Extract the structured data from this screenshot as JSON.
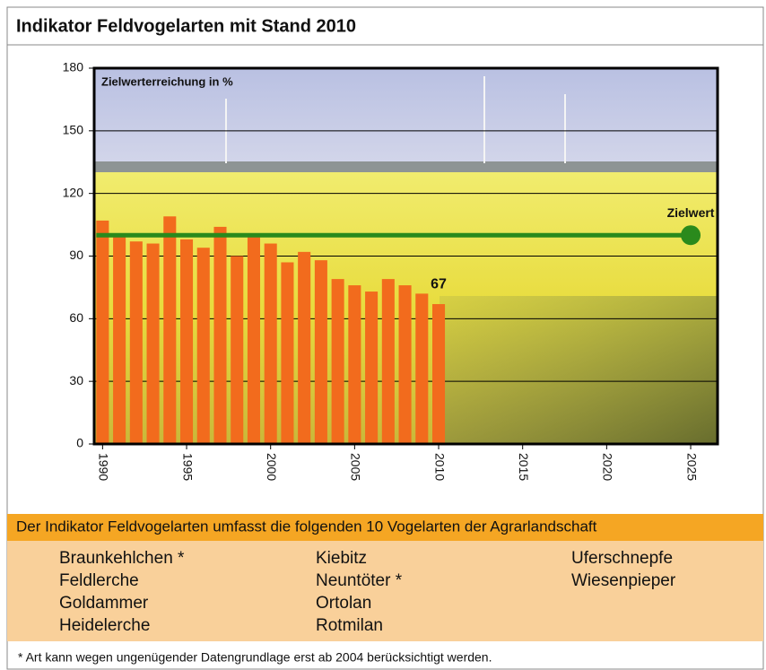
{
  "chart_data": {
    "type": "bar",
    "title": "Indikator Feldvogelarten mit Stand 2010",
    "y_label": "Zielwerterreichung in %",
    "x": [
      1990,
      1991,
      1992,
      1993,
      1994,
      1995,
      1996,
      1997,
      1998,
      1999,
      2000,
      2001,
      2002,
      2003,
      2004,
      2005,
      2006,
      2007,
      2008,
      2009,
      2010
    ],
    "values": [
      107,
      100,
      97,
      96,
      109,
      98,
      94,
      104,
      90,
      99,
      96,
      87,
      92,
      88,
      79,
      76,
      73,
      79,
      76,
      72,
      67
    ],
    "labeled_point": 20,
    "color": "#f26b1d",
    "xlim": [
      1989.5,
      2026.6
    ],
    "xticks": [
      1990,
      1995,
      2000,
      2005,
      2010,
      2015,
      2020,
      2025
    ],
    "ylim": [
      0,
      180
    ],
    "yticks": [
      0,
      30,
      60,
      90,
      120,
      150,
      180
    ],
    "grid": true,
    "target": {
      "label": "Zielwert",
      "value": 100,
      "x_start": 1990,
      "x_end": 2025,
      "color": "#2a8a1c"
    }
  },
  "species_box": {
    "header": "Der Indikator Feldvogelarten umfasst die folgenden 10 Vogelarten der Agrarlandschaft",
    "columns": [
      [
        "Braunkehlchen *",
        "Feldlerche",
        "Goldammer",
        "Heidelerche"
      ],
      [
        "Kiebitz",
        "Neuntöter *",
        "Ortolan",
        "Rotmilan"
      ],
      [
        "Uferschnepfe",
        "Wiesenpieper"
      ]
    ]
  },
  "footnote": "* Art kann wegen ungenügender Datengrundlage erst ab 2004 berücksichtigt werden."
}
